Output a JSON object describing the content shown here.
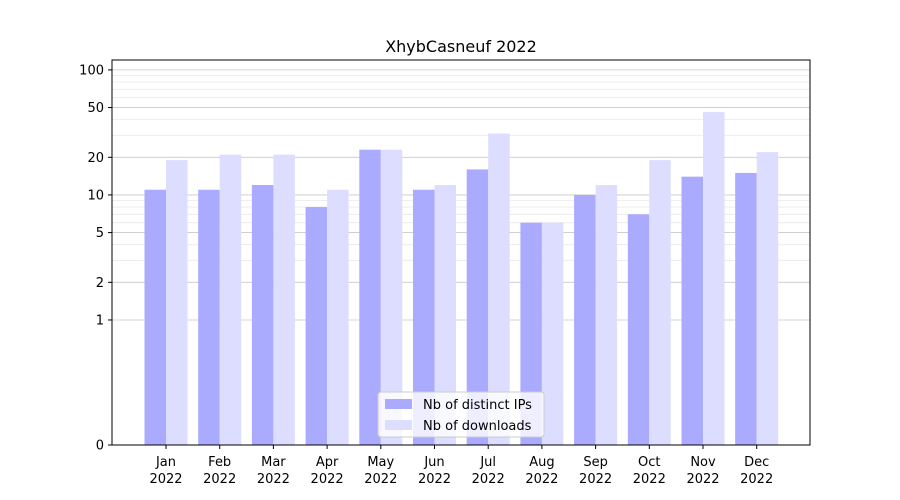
{
  "chart_data": {
    "type": "bar",
    "title": "XhybCasneuf 2022",
    "xlabel": "",
    "ylabel": "",
    "yscale": "symlog",
    "ylim": [
      0,
      120
    ],
    "yticks": [
      0,
      1,
      2,
      5,
      10,
      20,
      50,
      100
    ],
    "ytick_labels": [
      "0",
      "1",
      "2",
      "5",
      "10",
      "20",
      "50",
      "100"
    ],
    "categories": [
      [
        "Jan",
        "2022"
      ],
      [
        "Feb",
        "2022"
      ],
      [
        "Mar",
        "2022"
      ],
      [
        "Apr",
        "2022"
      ],
      [
        "May",
        "2022"
      ],
      [
        "Jun",
        "2022"
      ],
      [
        "Jul",
        "2022"
      ],
      [
        "Aug",
        "2022"
      ],
      [
        "Sep",
        "2022"
      ],
      [
        "Oct",
        "2022"
      ],
      [
        "Nov",
        "2022"
      ],
      [
        "Dec",
        "2022"
      ]
    ],
    "series": [
      {
        "name": "Nb of distinct IPs",
        "color": "#aaaaff",
        "values": [
          11,
          11,
          12,
          8,
          23,
          11,
          16,
          6,
          10,
          7,
          14,
          15
        ]
      },
      {
        "name": "Nb of downloads",
        "color": "#ddddff",
        "values": [
          19,
          21,
          21,
          11,
          23,
          12,
          31,
          6,
          12,
          19,
          46,
          22
        ]
      }
    ],
    "grid": true,
    "legend_position": "lower-center"
  }
}
